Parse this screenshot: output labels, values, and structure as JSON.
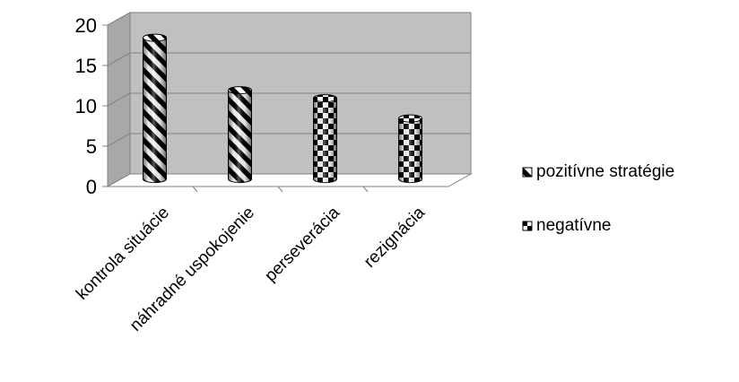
{
  "chart_data": {
    "type": "bar",
    "title": "",
    "xlabel": "",
    "ylabel": "",
    "ylim": [
      0,
      20
    ],
    "yticks": [
      0,
      5,
      10,
      15,
      20
    ],
    "grid": true,
    "legend_position": "right",
    "categories": [
      "kontrola situácie",
      "náhradné uspokojenie",
      "perseverácia",
      "rezignácia"
    ],
    "series": [
      {
        "name": "pozitívne stratégie",
        "values": [
          17.5,
          11,
          null,
          null
        ],
        "pattern": "diagonal-stripes"
      },
      {
        "name": "negatívne",
        "values": [
          null,
          null,
          10,
          7.5
        ],
        "pattern": "checkerboard"
      }
    ],
    "colors": {
      "wall": "#c0c0c0",
      "floor": "#ffffff",
      "gridline": "#808080",
      "bar_dark": "#000000",
      "bar_light": "#ffffff"
    }
  }
}
